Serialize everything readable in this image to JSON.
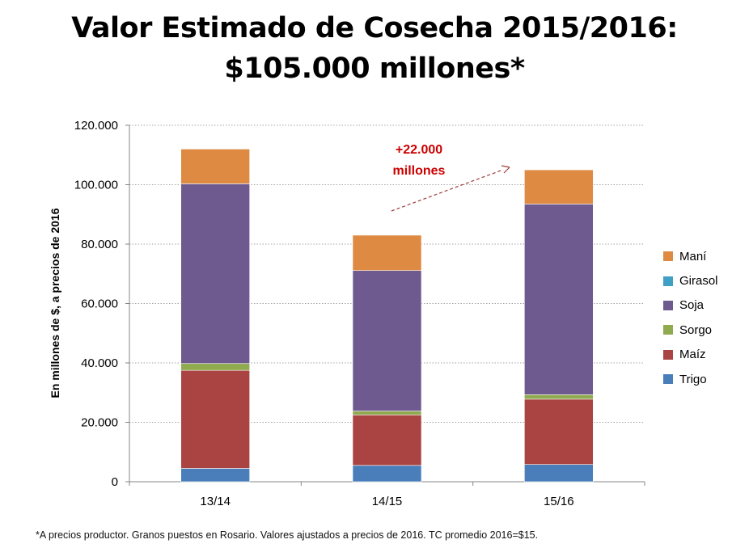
{
  "title_line1": "Valor Estimado de Cosecha 2015/2016:",
  "title_line2": "$105.000 millones*",
  "footnote": "*A precios productor. Granos puestos en Rosario. Valores ajustados a precios de 2016. TC promedio 2016=$15.",
  "annotation": {
    "line1": "+22.000",
    "line2": "millones",
    "color": "#cc0000"
  },
  "chart_data": {
    "type": "bar",
    "stacked": true,
    "categories": [
      "13/14",
      "14/15",
      "15/16"
    ],
    "ylabel": "En millones de $, a precios de 2016",
    "ylim": [
      0,
      120000
    ],
    "yticks": [
      0,
      20000,
      40000,
      60000,
      80000,
      100000,
      120000
    ],
    "ytick_labels": [
      "0",
      "20.000",
      "40.000",
      "60.000",
      "80.000",
      "100.000",
      "120.000"
    ],
    "grid": true,
    "legend_position": "right",
    "series": [
      {
        "name": "Trigo",
        "color": "#4a7ebb",
        "values": [
          4500,
          5500,
          5800
        ]
      },
      {
        "name": "Maíz",
        "color": "#a94442",
        "values": [
          33000,
          17000,
          22000
        ]
      },
      {
        "name": "Sorgo",
        "color": "#8faa4f",
        "values": [
          2300,
          1300,
          1500
        ]
      },
      {
        "name": "Soja",
        "color": "#6f5a90",
        "values": [
          60500,
          47300,
          64200
        ]
      },
      {
        "name": "Girasol",
        "color": "#3f9fc4",
        "values": [
          0,
          0,
          0
        ]
      },
      {
        "name": "Maní",
        "color": "#de8a42",
        "values": [
          11700,
          11900,
          11500
        ]
      }
    ]
  }
}
